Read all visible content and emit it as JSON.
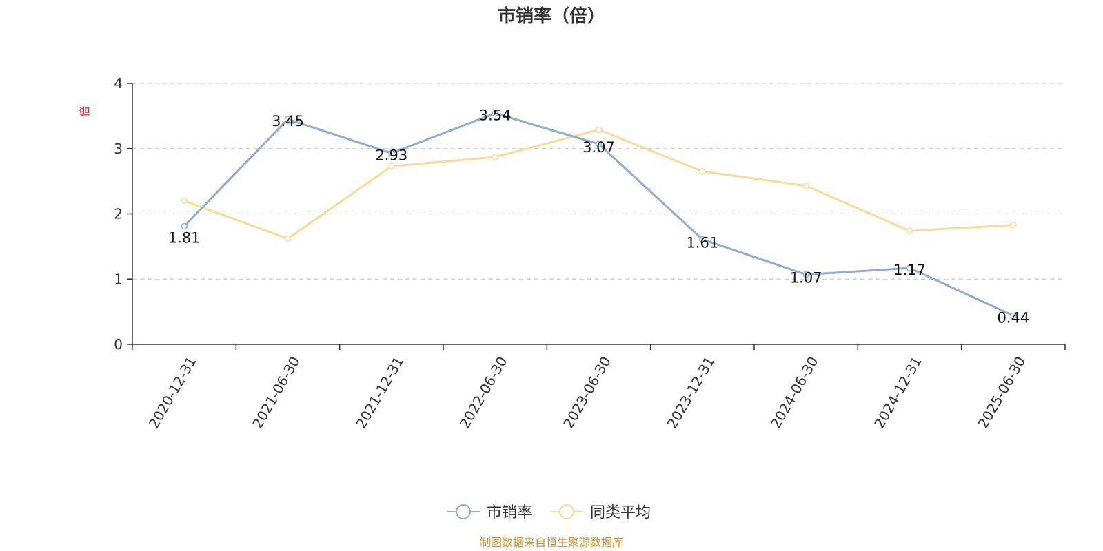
{
  "chart_data": {
    "type": "line",
    "title": "市销率（倍）",
    "ylabel": "倍",
    "xlabel": "",
    "ylim": [
      0,
      4
    ],
    "yticks": [
      0,
      1,
      2,
      3,
      4
    ],
    "grid": true,
    "legend_position": "bottom",
    "categories": [
      "2020-12-31",
      "2021-06-30",
      "2021-12-31",
      "2022-06-30",
      "2023-06-30",
      "2023-12-31",
      "2024-06-30",
      "2024-12-31",
      "2025-06-30"
    ],
    "series": [
      {
        "name": "市销率",
        "color": "#8eaad6",
        "values": [
          1.81,
          3.45,
          2.93,
          3.54,
          3.07,
          1.61,
          1.07,
          1.17,
          0.44
        ],
        "labels": [
          "1.81",
          "3.45",
          "2.93",
          "3.54",
          "3.07",
          "1.61",
          "1.07",
          "1.17",
          "0.44"
        ]
      },
      {
        "name": "同类平均",
        "color": "#fcd995",
        "values": [
          2.2,
          1.62,
          2.73,
          2.87,
          3.29,
          2.65,
          2.43,
          1.74,
          1.83
        ]
      }
    ],
    "source": "制图数据来自恒生聚源数据库"
  }
}
